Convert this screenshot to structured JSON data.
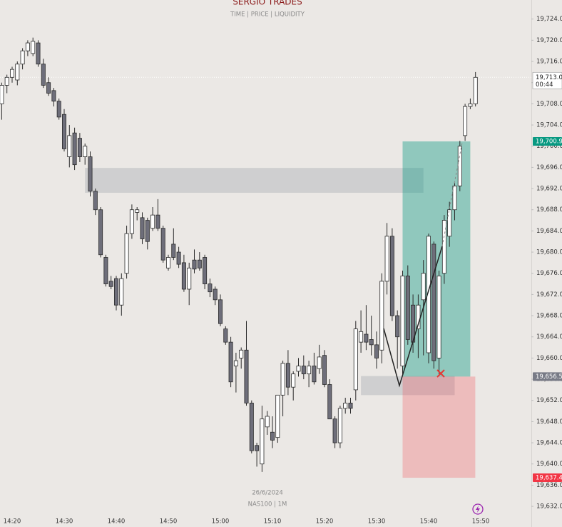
{
  "chart_data": {
    "type": "candlestick",
    "title": "SERGIO TRADES",
    "subtitle": "TIME  | PRICE | LIQUIDITY",
    "watermark": [
      "26/6/2024",
      "NAS100 | 1M"
    ],
    "categories": [
      null,
      null,
      "14:20",
      null,
      null,
      null,
      null,
      null,
      null,
      null,
      null,
      null,
      "14:30",
      null,
      null,
      null,
      null,
      null,
      null,
      null,
      null,
      null,
      "14:40",
      null,
      null,
      null,
      null,
      null,
      null,
      null,
      null,
      null,
      "14:50",
      null,
      null,
      null,
      null,
      null,
      null,
      null,
      null,
      null,
      "15:00",
      null,
      null,
      null,
      null,
      null,
      null,
      null,
      null,
      null,
      "15:10",
      null,
      null,
      null,
      null,
      null,
      null,
      null,
      null,
      null,
      "15:20",
      null,
      null,
      null,
      null,
      null,
      null,
      null,
      null,
      null,
      "15:30",
      null,
      null,
      null,
      null,
      null,
      null,
      null,
      null,
      null,
      "15:40",
      null,
      null,
      null,
      null,
      null,
      null,
      null,
      null,
      null,
      "15:50"
    ],
    "open": [
      19708,
      19711.5,
      19713,
      19712.5,
      19715.5,
      19718,
      19717.5,
      19719.5,
      19715.5,
      19712,
      19710.5,
      19708.5,
      19706,
      19698,
      19702.5,
      19701.5,
      19698,
      19698,
      19691.5,
      19688,
      19679,
      19674.5,
      19675,
      19670,
      19676,
      19683.5,
      19687.5,
      19686.5,
      19686,
      19684.5,
      19687,
      19684.5,
      19677,
      19681.5,
      19680,
      19678,
      19673,
      19678.5,
      19678.5,
      19679,
      19674,
      19673,
      19671,
      19665.5,
      19663,
      19658.5,
      19660,
      19661.5,
      19651.5,
      19643.5,
      19640,
      19647,
      19646,
      19645,
      19653,
      19659,
      19654.5,
      19657.5,
      19658.5,
      19657,
      19658.5,
      19658,
      19660.5,
      19655,
      19648.5,
      19644,
      19650.5,
      19651.5,
      19654,
      19663,
      19664.5,
      19663.5,
      19662.5,
      19661.5,
      19674.5,
      19683,
      19668,
      19658.5,
      19675.5,
      19670,
      19665.5,
      19671,
      19661,
      19681.5,
      19660,
      19676,
      19683,
      19688,
      19692.5,
      19702,
      19707.5,
      19708,
      null
    ],
    "high": [
      19712,
      19713.5,
      19715,
      19716,
      19718.5,
      19720,
      19720.5,
      19720,
      19716.5,
      19713,
      19711,
      19709,
      19707,
      19704,
      19703.5,
      19702.5,
      19700.5,
      19699,
      19692,
      19688.5,
      19679.5,
      19675.5,
      19675.5,
      19676,
      19685,
      19689,
      19688.5,
      19687.5,
      19686.5,
      19688.5,
      19690,
      19685,
      19679.5,
      19684.5,
      19681,
      19679.5,
      19678,
      19680.5,
      19680,
      19679.5,
      19675,
      19673.5,
      19672,
      19666,
      19664,
      19661,
      19662,
      19667,
      19652,
      19644,
      19651,
      19650,
      19649,
      19652.5,
      19659.5,
      19661.5,
      19657.5,
      19660,
      19660.5,
      19659.5,
      19661,
      19662.5,
      19661.5,
      19656,
      19649,
      19651,
      19652.5,
      19652.5,
      19667,
      19669,
      19670,
      19668,
      19665,
      19676,
      19685.5,
      19684.5,
      19669,
      19676.5,
      19677.5,
      19672,
      19672,
      19678.5,
      19683.5,
      19682,
      19676.5,
      19687,
      19689.5,
      19693,
      19701,
      19708,
      19709,
      19714,
      null
    ],
    "low": [
      19705,
      19710,
      19712,
      19711.5,
      19714.5,
      19717,
      19717,
      19715,
      19711,
      19709.5,
      19707.5,
      19705,
      19699,
      19696,
      19695.5,
      19697,
      19696.5,
      19690.5,
      19687,
      19679,
      19673.5,
      19673,
      19669,
      19668,
      19675,
      19682.5,
      19686,
      19681.5,
      19680.5,
      19684,
      19684,
      19678,
      19676.5,
      19678.5,
      19677,
      19672.5,
      19670,
      19676,
      19676.5,
      19673,
      19671.5,
      19670,
      19666,
      19662.5,
      19654.5,
      19653.5,
      19658,
      19651,
      19642,
      19639.5,
      19638.5,
      19645.5,
      19643,
      19644,
      19649,
      19653,
      19652,
      19656.5,
      19656,
      19654.5,
      19655,
      19657,
      19654.5,
      19648.5,
      19643,
      19643,
      19649.5,
      19649.5,
      19652,
      19661,
      19661.5,
      19660.5,
      19658,
      19659,
      19672,
      19667,
      19658,
      19657,
      19662.5,
      19661,
      19660,
      19660.5,
      19659,
      19658,
      19657,
      19674,
      19681,
      19686,
      19691.5,
      19701,
      19707,
      19707.5,
      null
    ],
    "close": [
      19711.5,
      19713,
      19714.5,
      19715.5,
      19718,
      19719.5,
      19719.8,
      19715.5,
      19711.5,
      19710,
      19708.5,
      19705.5,
      19699.5,
      19702,
      19696.5,
      19698,
      19700,
      19691.5,
      19688,
      19679.5,
      19674,
      19673.5,
      19670,
      19675,
      19683.5,
      19688,
      19688,
      19682.5,
      19682,
      19687,
      19684.5,
      19678.5,
      19679,
      19679,
      19677.7,
      19673,
      19677,
      19676.8,
      19677,
      19674,
      19672.5,
      19671,
      19666.5,
      19663,
      19655.5,
      19659.5,
      19661.5,
      19651.5,
      19642.5,
      19642.5,
      19648.5,
      19649,
      19644.5,
      19653,
      19659,
      19654.5,
      19657,
      19658.5,
      19657,
      19658.5,
      19655.5,
      19660.2,
      19655,
      19648.5,
      19644,
      19650.5,
      19651.5,
      19650.5,
      19665.5,
      19665,
      19663,
      19662.5,
      19660,
      19674.5,
      19683,
      19668,
      19664,
      19675.5,
      19663.5,
      19663,
      19670,
      19676,
      19683,
      19659.5,
      19675.5,
      19686,
      19688,
      19692.5,
      19700,
      19707.5,
      19708,
      19713,
      null
    ],
    "up_color": "#ffffff",
    "down_color": "#6e6e7a",
    "wick_color": "#2a2a2a",
    "ylim": [
      19628.1,
      19727.6
    ],
    "yticks": [
      {
        "value": 19724,
        "label": "19,724.0"
      },
      {
        "value": 19720,
        "label": "19,720.0"
      },
      {
        "value": 19716,
        "label": "19,716.0"
      },
      {
        "value": 19712,
        "label": "19,712.0"
      },
      {
        "value": 19708,
        "label": "19,708.0"
      },
      {
        "value": 19704,
        "label": "19,704.0"
      },
      {
        "value": 19700,
        "label": "19,700.0"
      },
      {
        "value": 19696,
        "label": "19,696.0"
      },
      {
        "value": 19692,
        "label": "19,692.0"
      },
      {
        "value": 19688,
        "label": "19,688.0"
      },
      {
        "value": 19684,
        "label": "19,684.0"
      },
      {
        "value": 19680,
        "label": "19,680.0"
      },
      {
        "value": 19676,
        "label": "19,676.0"
      },
      {
        "value": 19672,
        "label": "19,672.0"
      },
      {
        "value": 19668,
        "label": "19,668.0"
      },
      {
        "value": 19664,
        "label": "19,664.0"
      },
      {
        "value": 19660,
        "label": "19,660.0"
      },
      {
        "value": 19656,
        "label": "19,656.0"
      },
      {
        "value": 19652,
        "label": "19,652.0"
      },
      {
        "value": 19648,
        "label": "19,648.0"
      },
      {
        "value": 19644,
        "label": "19,644.0"
      },
      {
        "value": 19640,
        "label": "19,640.0"
      },
      {
        "value": 19636,
        "label": "19,636.0"
      },
      {
        "value": 19632,
        "label": "19,632.0"
      }
    ],
    "grid": false,
    "current": {
      "value": 19713.0,
      "label": "19,713.0",
      "countdown": "00:44"
    },
    "zones": [
      {
        "from": "14:34",
        "to": "15:39",
        "high": 19695.9,
        "low": 19691.2,
        "color": "#c8c8ca"
      },
      {
        "from": "15:27",
        "to": "15:45",
        "high": 19656.6,
        "low": 19653.0,
        "color": "#c8c8ca"
      }
    ],
    "position": {
      "from": "15:35",
      "to": "15:48",
      "target": {
        "value": 19700.9,
        "label": "19,700.9",
        "color": "#089981"
      },
      "entry": {
        "value": 19656.5,
        "label": "19,656.5",
        "color": "#787b86"
      },
      "stop": {
        "value": 19637.4,
        "label": "19,637.4",
        "color": "#f23645"
      }
    }
  }
}
